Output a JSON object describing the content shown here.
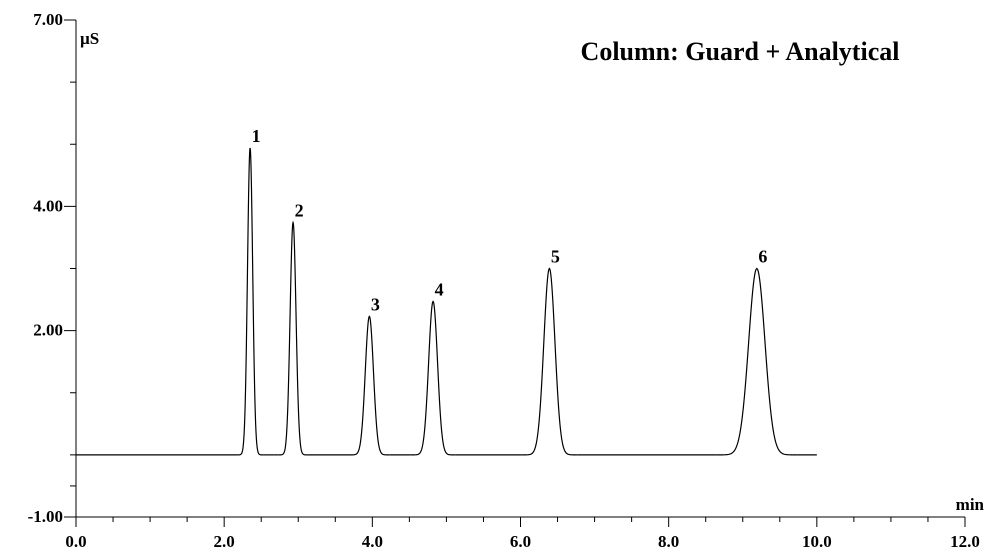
{
  "chart_data": {
    "type": "chromatogram",
    "title": "Column: Guard + Analytical",
    "y_unit": "µS",
    "x_unit": "min",
    "color": "#000000",
    "xlim": [
      0,
      12
    ],
    "ylim": [
      -1,
      7
    ],
    "xticks": [
      {
        "value": 0,
        "label": "0.0"
      },
      {
        "value": 2,
        "label": "2.0"
      },
      {
        "value": 4,
        "label": "4.0"
      },
      {
        "value": 6,
        "label": "6.0"
      },
      {
        "value": 8,
        "label": "8.0"
      },
      {
        "value": 10,
        "label": "10.0"
      },
      {
        "value": 12,
        "label": "12.0"
      }
    ],
    "yticks": [
      {
        "value": 7,
        "label": "7.00"
      },
      {
        "value": 4,
        "label": "4.00"
      },
      {
        "value": 2,
        "label": "2.00"
      },
      {
        "value": -1,
        "label": "-1.00"
      }
    ],
    "xminor": [
      0.5,
      1,
      1.5,
      2.5,
      3,
      3.5,
      4.5,
      5,
      5.5,
      6.5,
      7,
      7.5,
      8.5,
      9,
      9.5,
      10.5,
      11,
      11.5
    ],
    "yminor": [
      6,
      5,
      3,
      1,
      0,
      -0.5
    ],
    "trace_range": [
      0,
      10
    ],
    "baseline": 0,
    "peaks": [
      {
        "label": "1",
        "time": 2.35,
        "height": 4.94,
        "width": 0.035
      },
      {
        "label": "2",
        "time": 2.93,
        "height": 3.74,
        "width": 0.04
      },
      {
        "label": "3",
        "time": 3.96,
        "height": 2.23,
        "width": 0.055
      },
      {
        "label": "4",
        "time": 4.82,
        "height": 2.47,
        "width": 0.06
      },
      {
        "label": "5",
        "time": 6.39,
        "height": 3.0,
        "width": 0.075
      },
      {
        "label": "6",
        "time": 9.19,
        "height": 3.0,
        "width": 0.11
      }
    ]
  }
}
